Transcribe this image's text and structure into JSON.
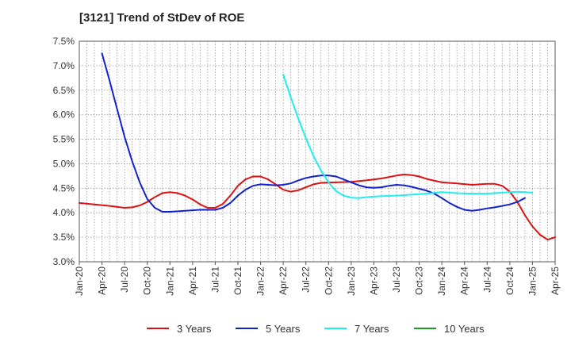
{
  "chart_data": {
    "type": "line",
    "title": "[3121]  Trend of StDev of ROE",
    "x_tick_labels": [
      "Jan-20",
      "Apr-20",
      "Jul-20",
      "Oct-20",
      "Jan-21",
      "Apr-21",
      "Jul-21",
      "Oct-21",
      "Jan-22",
      "Apr-22",
      "Jul-22",
      "Oct-22",
      "Jan-23",
      "Apr-23",
      "Jul-23",
      "Oct-23",
      "Jan-24",
      "Apr-24",
      "Jul-24",
      "Oct-24",
      "Jan-25",
      "Apr-25"
    ],
    "y_tick_labels": [
      "3.0%",
      "3.5%",
      "4.0%",
      "4.5%",
      "5.0%",
      "5.5%",
      "6.0%",
      "6.5%",
      "7.0%",
      "7.5%"
    ],
    "ylim": [
      3.0,
      7.5
    ],
    "xlim_months": [
      0,
      63
    ],
    "grid": true,
    "legend_position": "bottom",
    "series": [
      {
        "name": "3 Years",
        "color": "#dd1111",
        "points": [
          [
            0,
            4.2
          ],
          [
            2,
            4.17
          ],
          [
            4,
            4.14
          ],
          [
            6,
            4.1
          ],
          [
            7,
            4.11
          ],
          [
            8,
            4.15
          ],
          [
            9,
            4.22
          ],
          [
            10,
            4.32
          ],
          [
            11,
            4.4
          ],
          [
            12,
            4.42
          ],
          [
            13,
            4.4
          ],
          [
            14,
            4.35
          ],
          [
            15,
            4.27
          ],
          [
            16,
            4.17
          ],
          [
            17,
            4.1
          ],
          [
            18,
            4.1
          ],
          [
            19,
            4.18
          ],
          [
            20,
            4.35
          ],
          [
            21,
            4.55
          ],
          [
            22,
            4.68
          ],
          [
            23,
            4.74
          ],
          [
            24,
            4.74
          ],
          [
            25,
            4.68
          ],
          [
            26,
            4.58
          ],
          [
            27,
            4.47
          ],
          [
            28,
            4.43
          ],
          [
            29,
            4.46
          ],
          [
            30,
            4.52
          ],
          [
            31,
            4.58
          ],
          [
            32,
            4.61
          ],
          [
            34,
            4.62
          ],
          [
            36,
            4.63
          ],
          [
            38,
            4.66
          ],
          [
            40,
            4.7
          ],
          [
            42,
            4.76
          ],
          [
            43,
            4.78
          ],
          [
            44,
            4.77
          ],
          [
            45,
            4.74
          ],
          [
            46,
            4.69
          ],
          [
            48,
            4.62
          ],
          [
            50,
            4.6
          ],
          [
            52,
            4.57
          ],
          [
            54,
            4.59
          ],
          [
            55,
            4.59
          ],
          [
            56,
            4.55
          ],
          [
            57,
            4.43
          ],
          [
            58,
            4.22
          ],
          [
            59,
            3.95
          ],
          [
            60,
            3.72
          ],
          [
            61,
            3.55
          ],
          [
            62,
            3.45
          ],
          [
            63,
            3.5
          ]
        ]
      },
      {
        "name": "5 Years",
        "color": "#1122cc",
        "points": [
          [
            3,
            7.25
          ],
          [
            4,
            6.7
          ],
          [
            5,
            6.12
          ],
          [
            6,
            5.55
          ],
          [
            7,
            5.05
          ],
          [
            8,
            4.62
          ],
          [
            9,
            4.28
          ],
          [
            10,
            4.1
          ],
          [
            11,
            4.02
          ],
          [
            12,
            4.02
          ],
          [
            14,
            4.04
          ],
          [
            16,
            4.06
          ],
          [
            18,
            4.06
          ],
          [
            19,
            4.1
          ],
          [
            20,
            4.2
          ],
          [
            21,
            4.35
          ],
          [
            22,
            4.47
          ],
          [
            23,
            4.55
          ],
          [
            24,
            4.58
          ],
          [
            25,
            4.57
          ],
          [
            26,
            4.56
          ],
          [
            27,
            4.57
          ],
          [
            28,
            4.6
          ],
          [
            29,
            4.66
          ],
          [
            30,
            4.71
          ],
          [
            31,
            4.74
          ],
          [
            32,
            4.76
          ],
          [
            33,
            4.76
          ],
          [
            34,
            4.74
          ],
          [
            35,
            4.68
          ],
          [
            36,
            4.62
          ],
          [
            37,
            4.56
          ],
          [
            38,
            4.52
          ],
          [
            39,
            4.51
          ],
          [
            40,
            4.52
          ],
          [
            41,
            4.55
          ],
          [
            42,
            4.57
          ],
          [
            43,
            4.56
          ],
          [
            44,
            4.53
          ],
          [
            45,
            4.49
          ],
          [
            46,
            4.45
          ],
          [
            47,
            4.39
          ],
          [
            48,
            4.3
          ],
          [
            49,
            4.2
          ],
          [
            50,
            4.12
          ],
          [
            51,
            4.06
          ],
          [
            52,
            4.04
          ],
          [
            53,
            4.06
          ],
          [
            54,
            4.09
          ],
          [
            55,
            4.11
          ],
          [
            56,
            4.14
          ],
          [
            57,
            4.17
          ],
          [
            58,
            4.22
          ],
          [
            59,
            4.3
          ]
        ]
      },
      {
        "name": "7 Years",
        "color": "#22eeee",
        "points": [
          [
            27,
            6.82
          ],
          [
            28,
            6.35
          ],
          [
            29,
            5.92
          ],
          [
            30,
            5.52
          ],
          [
            31,
            5.16
          ],
          [
            32,
            4.86
          ],
          [
            33,
            4.62
          ],
          [
            34,
            4.44
          ],
          [
            35,
            4.35
          ],
          [
            36,
            4.31
          ],
          [
            37,
            4.3
          ],
          [
            38,
            4.32
          ],
          [
            40,
            4.34
          ],
          [
            42,
            4.35
          ],
          [
            44,
            4.37
          ],
          [
            46,
            4.39
          ],
          [
            48,
            4.42
          ],
          [
            50,
            4.4
          ],
          [
            52,
            4.39
          ],
          [
            54,
            4.39
          ],
          [
            56,
            4.41
          ],
          [
            58,
            4.43
          ],
          [
            59,
            4.42
          ],
          [
            60,
            4.41
          ]
        ]
      },
      {
        "name": "10 Years",
        "color": "#229922",
        "points": []
      }
    ]
  }
}
